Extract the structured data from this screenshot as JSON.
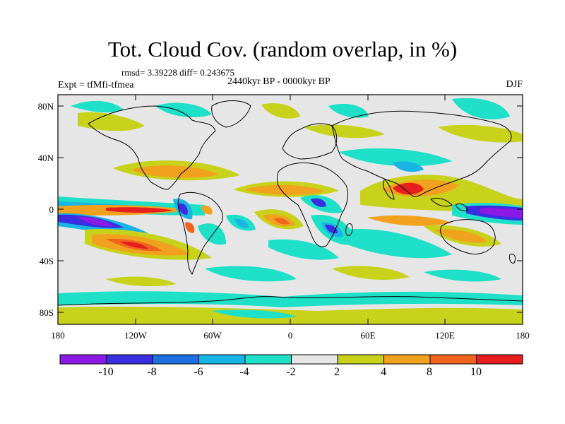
{
  "title": "Tot. Cloud Cov. (random overlap, in %)",
  "stats": "rmsd= 3.39228 diff= 0.243675",
  "experiment": "Expt = tfMfi-tfmea",
  "period": "2440kyr BP - 0000kyr BP",
  "season": "DJF",
  "lon_ticks": [
    "180",
    "120W",
    "60W",
    "0",
    "60E",
    "120E",
    "180"
  ],
  "lat_ticks": [
    "80N",
    "40N",
    "0",
    "40S",
    "80S"
  ],
  "colorbar": {
    "labels": [
      "-10",
      "-8",
      "-6",
      "-4",
      "-2",
      "2",
      "4",
      "8",
      "10"
    ],
    "colors": [
      "#8b1ae6",
      "#3a2ee0",
      "#1e6fe0",
      "#19b4e6",
      "#1ee0c8",
      "#e6e6e6",
      "#c8d21a",
      "#f0a21e",
      "#f0641e",
      "#e61e1e"
    ]
  }
}
